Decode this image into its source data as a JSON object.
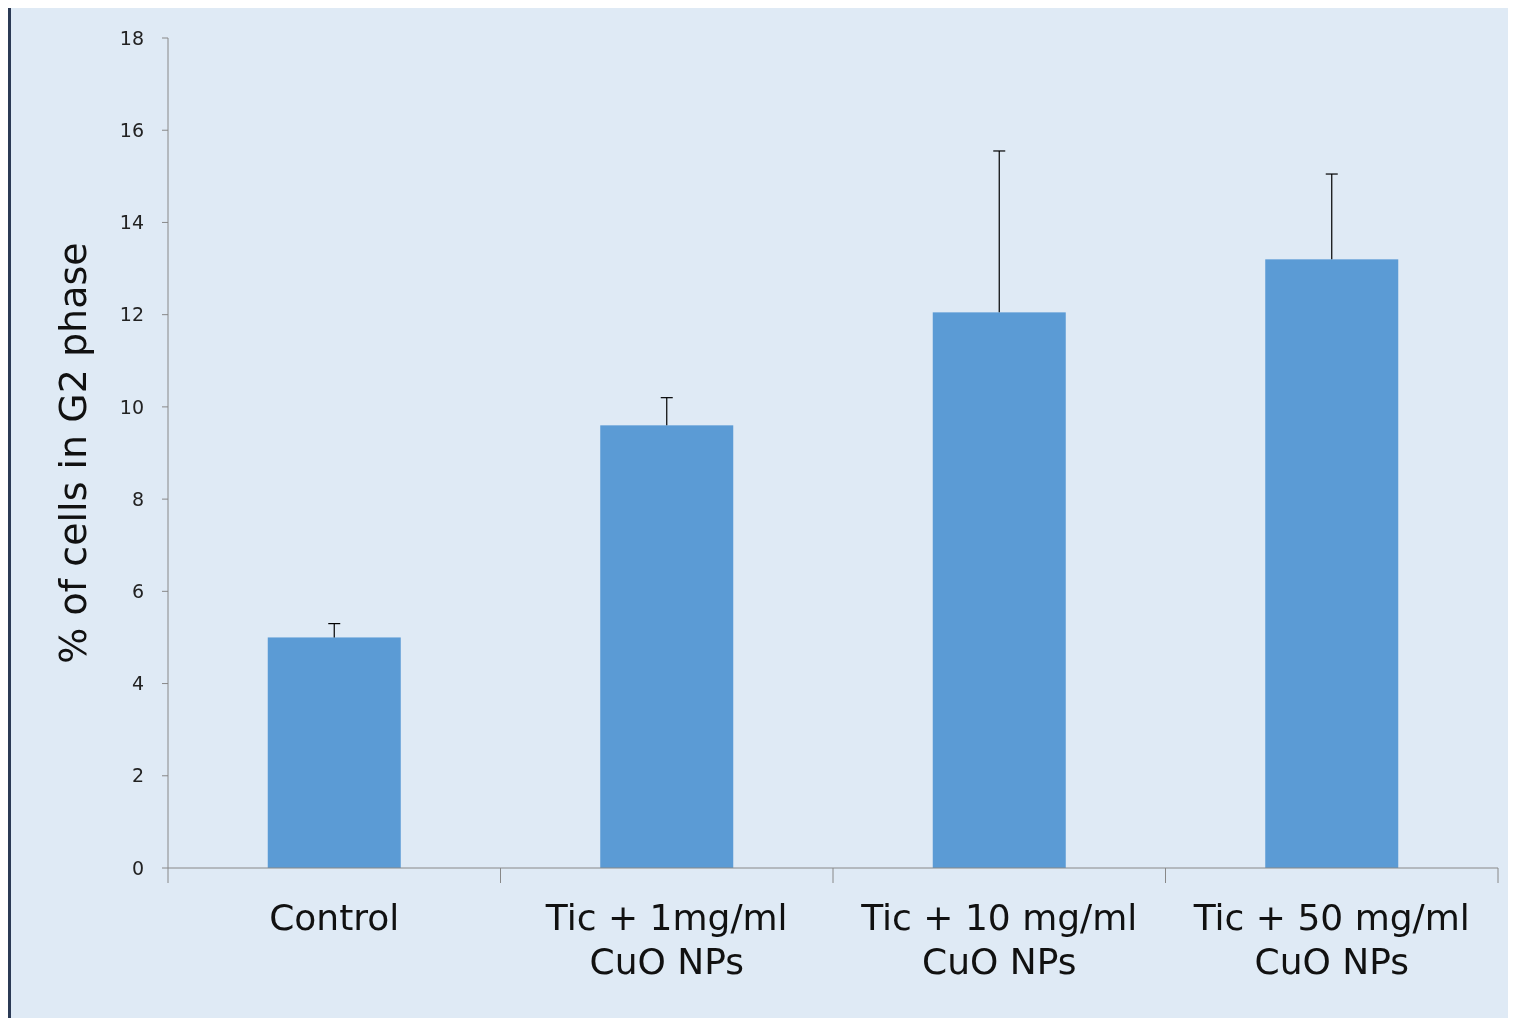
{
  "chart_data": {
    "type": "bar",
    "ylabel": "% of cells in G2 phase",
    "categories": [
      "Control",
      "Tic + 1mg/ml CuO NPs",
      "Tic + 10 mg/ml CuO NPs",
      "Tic + 50 mg/ml CuO NPs"
    ],
    "values": [
      5.0,
      9.6,
      12.05,
      13.2
    ],
    "color": "#5b9bd5",
    "errors": [
      [
        5.0,
        5.3
      ],
      [
        9.6,
        10.2
      ],
      [
        12.05,
        15.55
      ],
      [
        13.2,
        15.05
      ]
    ],
    "ylim": [
      0,
      18
    ],
    "yticks": [
      0,
      2,
      4,
      6,
      8,
      10,
      12,
      14,
      16,
      18
    ],
    "grid": false
  }
}
